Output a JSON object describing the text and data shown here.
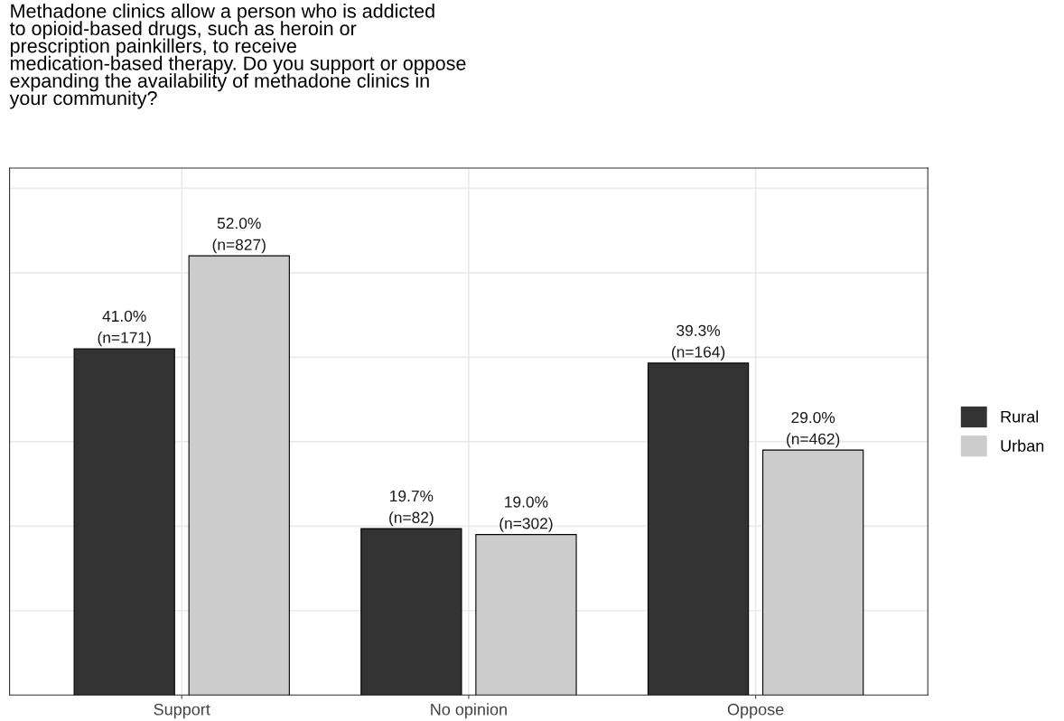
{
  "chart_data": {
    "type": "bar",
    "title": "Methadone clinics allow a person who is addicted\nto opioid-based drugs, such as heroin or\nprescription painkillers, to receive\nmedication-based therapy. Do you support or oppose\nexpanding the availability of methadone clinics in\nyour community?",
    "categories": [
      "Support",
      "No opinion",
      "Oppose"
    ],
    "series": [
      {
        "name": "Rural",
        "color": "#333333",
        "values": [
          41.0,
          19.7,
          39.3
        ],
        "value_labels": [
          "41.0%\n(n=171)",
          "19.7%\n(n=82)",
          "39.3%\n(n=164)"
        ]
      },
      {
        "name": "Urban",
        "color": "#cccccc",
        "values": [
          52.0,
          19.0,
          29.0
        ],
        "value_labels": [
          "52.0%\n(n=827)",
          "19.0%\n(n=302)",
          "29.0%\n(n=462)"
        ]
      }
    ],
    "ylim": [
      0,
      62.4
    ],
    "yticks": [
      {
        "value": 0,
        "label": null
      },
      {
        "value": 10,
        "label": null
      },
      {
        "value": 20,
        "label": null
      },
      {
        "value": 30,
        "label": null
      },
      {
        "value": 40,
        "label": null
      },
      {
        "value": 50,
        "label": null
      },
      {
        "value": 60,
        "label": null
      }
    ],
    "tick_labels": "x",
    "grid": true,
    "legend": "right"
  }
}
